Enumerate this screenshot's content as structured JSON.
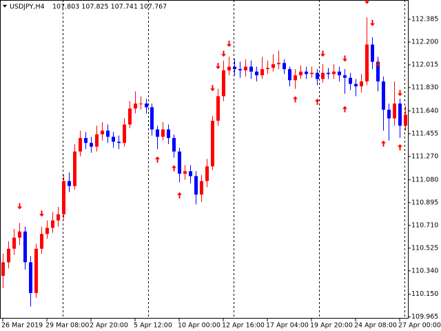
{
  "chart_data": {
    "type": "candlestick",
    "symbol": "USDJPY,H4",
    "quote": "107.803 107.825 107.741 107.767",
    "bull_color": "#ff0000",
    "bear_color": "#0000ff",
    "arrow_color": "#ff0000",
    "ylim": [
      109.952,
      112.542
    ],
    "yticks": [
      112.385,
      {
        "value": 112.2,
        "label": "112.200"
      },
      112.015,
      {
        "value": 111.83,
        "label": "111.830"
      },
      {
        "value": 111.64,
        "label": "111.640"
      },
      111.455,
      {
        "value": 111.27,
        "label": "111.270"
      },
      {
        "value": 111.08,
        "label": "111.080"
      },
      110.895,
      {
        "value": 110.71,
        "label": "110.710"
      },
      110.525,
      {
        "value": 110.34,
        "label": "110.340"
      },
      {
        "value": 110.15,
        "label": "110.150"
      },
      109.965
    ],
    "xticks": [
      {
        "value": 0,
        "label": "26 Mar 2019"
      },
      {
        "value": 8,
        "label": "29 Mar 08:00"
      },
      {
        "value": 16,
        "label": "2 Apr 20:00"
      },
      {
        "value": 24,
        "label": "5 Apr 12:00"
      },
      {
        "value": 32,
        "label": "10 Apr 00:00"
      },
      {
        "value": 40,
        "label": "12 Apr 16:00"
      },
      {
        "value": 48,
        "label": "17 Apr 04:00"
      },
      {
        "value": 56,
        "label": "19 Apr 20:00"
      },
      {
        "value": 64,
        "label": "24 Apr 08:00"
      },
      {
        "value": 72,
        "label": "27 Apr 00:00"
      }
    ],
    "open": [
      110.3,
      110.41,
      110.52,
      110.61,
      110.66,
      110.41,
      110.16,
      110.52,
      110.64,
      110.69,
      110.75,
      110.8,
      111.07,
      111.03,
      111.31,
      111.42,
      111.38,
      111.35,
      111.45,
      111.48,
      111.43,
      111.39,
      111.38,
      111.53,
      111.66,
      111.7,
      111.7,
      111.67,
      111.49,
      111.43,
      111.49,
      111.42,
      111.31,
      111.13,
      111.15,
      111.11,
      110.96,
      111.07,
      111.19,
      111.56,
      111.76,
      111.97,
      112.0,
      111.98,
      111.97,
      112.0,
      111.96,
      111.93,
      111.98,
      111.99,
      112.02,
      112.03,
      111.98,
      111.89,
      111.93,
      111.96,
      111.94,
      111.95,
      111.9,
      111.95,
      111.94,
      111.96,
      111.93,
      111.91,
      111.86,
      111.84,
      111.88,
      112.18,
      112.04,
      111.88,
      111.65,
      111.58,
      111.7,
      111.52
    ],
    "high": [
      110.48,
      110.58,
      110.68,
      110.73,
      110.7,
      110.46,
      110.56,
      110.7,
      110.75,
      110.82,
      110.86,
      111.12,
      111.14,
      111.37,
      111.48,
      111.47,
      111.43,
      111.52,
      111.55,
      111.53,
      111.47,
      111.44,
      111.58,
      111.72,
      111.8,
      111.76,
      111.74,
      111.7,
      111.52,
      111.55,
      111.53,
      111.45,
      111.34,
      111.2,
      111.2,
      111.15,
      111.12,
      111.25,
      111.6,
      111.82,
      112.05,
      112.08,
      112.06,
      112.04,
      112.06,
      112.05,
      112.0,
      112.08,
      112.05,
      112.1,
      112.13,
      112.06,
      112.0,
      111.98,
      112.01,
      112.0,
      112.0,
      111.98,
      112.02,
      111.99,
      112.02,
      112.0,
      111.98,
      111.95,
      111.9,
      111.94,
      112.4,
      112.24,
      112.08,
      111.92,
      111.7,
      111.88,
      111.74,
      111.68
    ],
    "low": [
      110.2,
      110.36,
      110.47,
      110.55,
      110.35,
      110.05,
      110.12,
      110.48,
      110.6,
      110.65,
      110.7,
      110.76,
      110.98,
      111.0,
      111.27,
      111.33,
      111.3,
      111.31,
      111.4,
      111.38,
      111.34,
      111.33,
      111.35,
      111.5,
      111.62,
      111.65,
      111.62,
      111.44,
      111.33,
      111.4,
      111.37,
      111.26,
      111.06,
      111.08,
      111.05,
      110.88,
      110.9,
      111.02,
      111.16,
      111.52,
      111.72,
      111.93,
      111.93,
      111.91,
      111.92,
      111.9,
      111.88,
      111.9,
      111.94,
      111.96,
      111.98,
      111.94,
      111.84,
      111.82,
      111.9,
      111.9,
      111.91,
      111.85,
      111.87,
      111.9,
      111.9,
      111.88,
      111.78,
      111.81,
      111.76,
      111.79,
      111.85,
      111.98,
      111.8,
      111.48,
      111.4,
      111.52,
      111.42,
      111.48
    ],
    "close": [
      110.41,
      110.52,
      110.61,
      110.66,
      110.41,
      110.16,
      110.52,
      110.64,
      110.69,
      110.75,
      110.8,
      111.07,
      111.03,
      111.31,
      111.42,
      111.38,
      111.35,
      111.45,
      111.48,
      111.43,
      111.39,
      111.38,
      111.53,
      111.66,
      111.7,
      111.7,
      111.67,
      111.49,
      111.43,
      111.49,
      111.42,
      111.31,
      111.13,
      111.15,
      111.11,
      110.96,
      111.07,
      111.19,
      111.56,
      111.76,
      111.97,
      112.0,
      111.98,
      111.97,
      112.0,
      111.96,
      111.93,
      111.98,
      111.99,
      112.02,
      112.03,
      111.98,
      111.89,
      111.93,
      111.96,
      111.94,
      111.95,
      111.9,
      111.95,
      111.94,
      111.96,
      111.93,
      111.91,
      111.86,
      111.84,
      111.88,
      112.18,
      112.04,
      111.88,
      111.65,
      111.58,
      111.7,
      111.52,
      111.61
    ],
    "down_arrows": {
      "x": [
        3,
        7,
        38,
        39,
        40,
        41,
        58,
        62,
        66,
        67,
        68,
        72
      ],
      "y": [
        110.84,
        110.78,
        111.8,
        111.98,
        112.08,
        112.16,
        112.08,
        112.04,
        112.51,
        112.33,
        112.0,
        111.76
      ]
    },
    "up_arrows": {
      "x": [
        28,
        31,
        32,
        53,
        57,
        62,
        69,
        72
      ],
      "y": [
        111.27,
        111.2,
        110.98,
        111.76,
        111.74,
        111.68,
        111.4,
        111.37
      ]
    }
  }
}
